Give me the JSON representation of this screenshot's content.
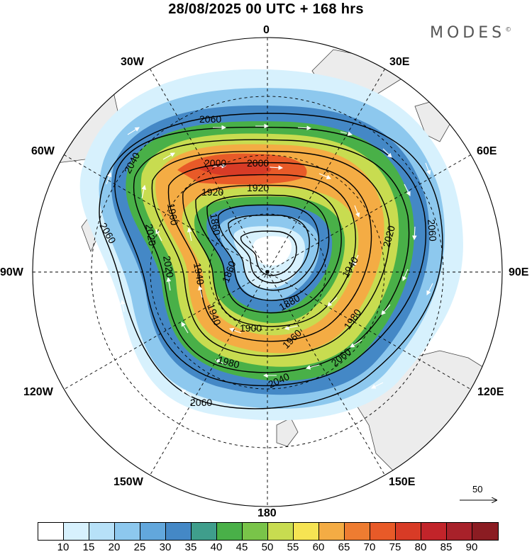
{
  "title": "28/08/2025  00 UTC  + 168 hrs",
  "brand": "MODES",
  "brand_mark": "©",
  "longitude_labels": {
    "lon_0": "0",
    "lon_30e": "30E",
    "lon_60e": "60E",
    "lon_90e": "90E",
    "lon_120e": "120E",
    "lon_150e": "150E",
    "lon_180": "180",
    "lon_150w": "150W",
    "lon_120w": "120W",
    "lon_90w": "90W",
    "lon_60w": "60W",
    "lon_30w": "30W"
  },
  "contour_labels": [
    "2060",
    "2040",
    "2020",
    "2000",
    "2000",
    "1920",
    "1920",
    "1960",
    "1940",
    "1940",
    "1900",
    "1880",
    "1860",
    "1860",
    "1940",
    "1960",
    "2040",
    "2060",
    "2020",
    "1980",
    "1980",
    "2020",
    "2060",
    "2060"
  ],
  "colorbar": {
    "ticks": [
      "10",
      "15",
      "20",
      "25",
      "30",
      "35",
      "40",
      "45",
      "50",
      "55",
      "60",
      "65",
      "70",
      "75",
      "80",
      "85",
      "90"
    ],
    "colors": [
      "#ffffff",
      "#d7f1fd",
      "#b7e1f8",
      "#8dc8ee",
      "#62a7dc",
      "#4488c6",
      "#3f9e8c",
      "#49b048",
      "#79c449",
      "#c8dc50",
      "#f6e453",
      "#f4ac44",
      "#ee7c31",
      "#e85a28",
      "#d83b26",
      "#c2242a",
      "#a8212a",
      "#8b1c22"
    ]
  },
  "reference_vector": {
    "label": "50"
  }
}
